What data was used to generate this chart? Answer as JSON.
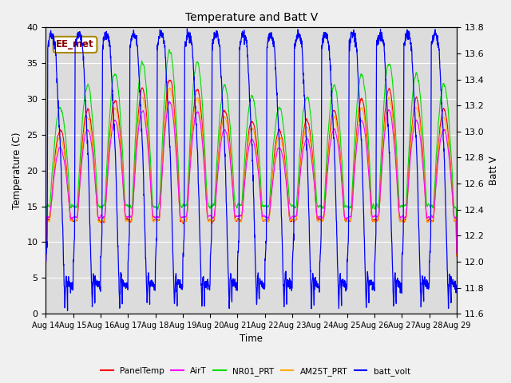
{
  "title": "Temperature and Batt V",
  "xlabel": "Time",
  "ylabel_left": "Temperature (C)",
  "ylabel_right": "Batt V",
  "annotation": "EE_met",
  "annotation_color": "#880000",
  "annotation_edge_color": "#aa8800",
  "ylim_left": [
    0,
    40
  ],
  "ylim_right": [
    11.6,
    13.8
  ],
  "x_tick_labels": [
    "Aug 14",
    "Aug 15",
    "Aug 16",
    "Aug 17",
    "Aug 18",
    "Aug 19",
    "Aug 20",
    "Aug 21",
    "Aug 22",
    "Aug 23",
    "Aug 24",
    "Aug 25",
    "Aug 26",
    "Aug 27",
    "Aug 28",
    "Aug 29"
  ],
  "yticks_left": [
    0,
    5,
    10,
    15,
    20,
    25,
    30,
    35,
    40
  ],
  "yticks_right": [
    11.6,
    11.8,
    12.0,
    12.2,
    12.4,
    12.6,
    12.8,
    13.0,
    13.2,
    13.4,
    13.6,
    13.8
  ],
  "legend_entries": [
    "PanelTemp",
    "AirT",
    "NR01_PRT",
    "AM25T_PRT",
    "batt_volt"
  ],
  "legend_colors": [
    "#ff0000",
    "#ff00ff",
    "#00dd00",
    "#ffaa00",
    "#0000ff"
  ],
  "bg_color": "#dcdcdc",
  "fig_bg_color": "#f0f0f0",
  "n_days": 15,
  "pts_per_day": 144,
  "figwidth": 6.4,
  "figheight": 4.8,
  "dpi": 100
}
